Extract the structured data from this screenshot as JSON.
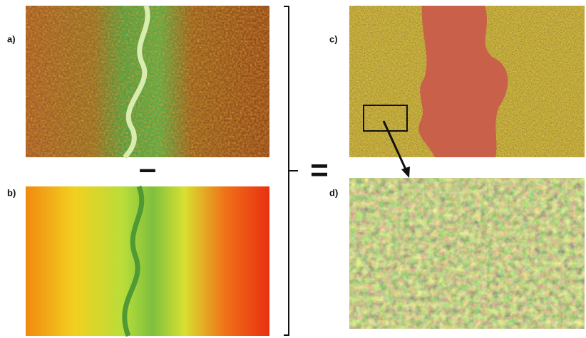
{
  "panels": [
    {
      "label": "a)"
    },
    {
      "label": "b)"
    },
    {
      "label": "c)"
    },
    {
      "label": "d)"
    }
  ],
  "operators": {
    "minus": "–",
    "equals": "="
  }
}
